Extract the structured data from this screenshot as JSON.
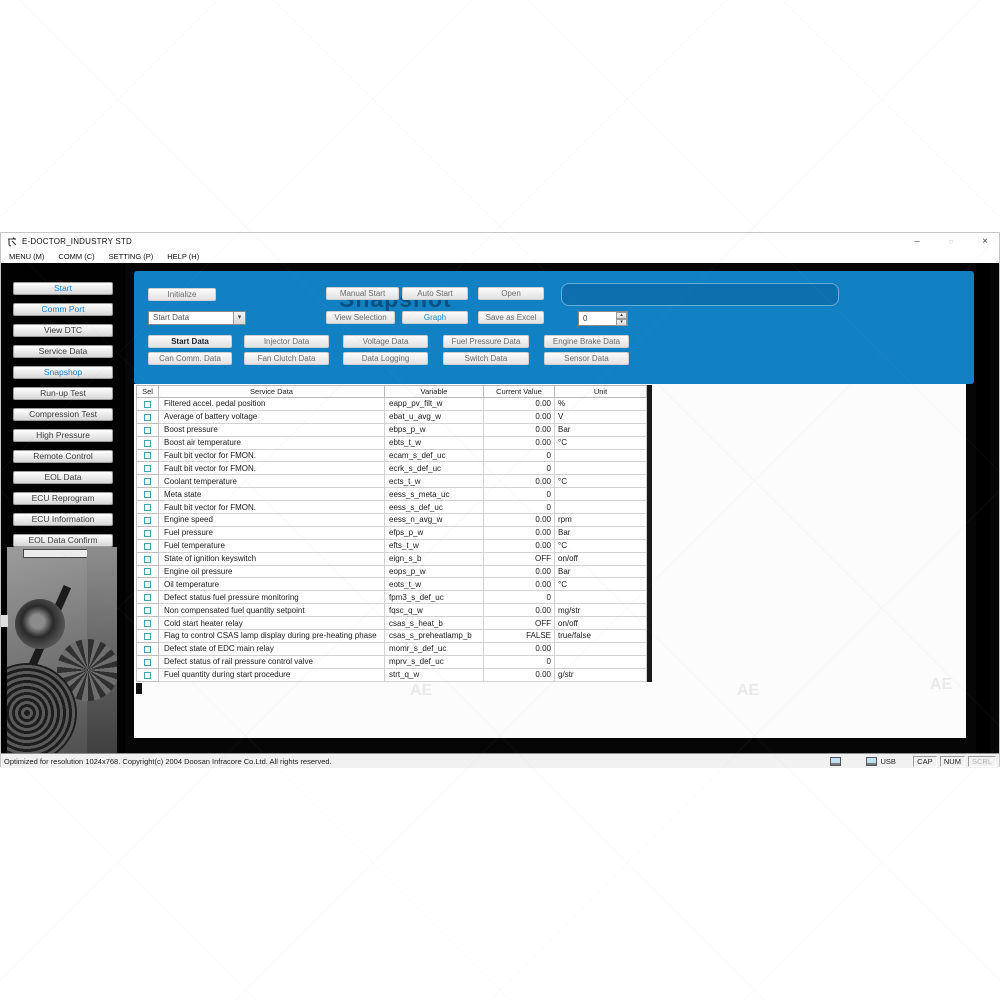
{
  "window": {
    "title": "E-DOCTOR_INDUSTRY STD",
    "minimize": "–",
    "maximize": "○",
    "close": "×"
  },
  "menu": [
    "MENU (M)",
    "COMM (C)",
    "SETTING (P)",
    "HELP (H)"
  ],
  "sidebar": [
    {
      "label": "Start",
      "active": true
    },
    {
      "label": "Comm Port",
      "active": true
    },
    {
      "label": "View DTC",
      "active": false
    },
    {
      "label": "Service Data",
      "active": false
    },
    {
      "label": "Snapshop",
      "active": true
    },
    {
      "label": "Run-up Test",
      "active": false
    },
    {
      "label": "Compression Test",
      "active": false
    },
    {
      "label": "High Pressure",
      "active": false
    },
    {
      "label": "Remote Control",
      "active": false
    },
    {
      "label": "EOL Data",
      "active": false
    },
    {
      "label": "ECU Reprogram",
      "active": false
    },
    {
      "label": "ECU Information",
      "active": false
    },
    {
      "label": "EOL Data Confirm",
      "active": false
    }
  ],
  "panel": {
    "watermark": "Snapshot",
    "initialize": "Initialize",
    "manual_start": "Manual Start",
    "auto_start": "Auto Start",
    "open": "Open",
    "view_selection": "View Selection",
    "graph": "Graph",
    "save_as_excel": "Save as Excel",
    "combo_value": "Start Data",
    "spinner_value": "0",
    "spin_up": "▴",
    "spin_down": "▾",
    "combo_arrow": "▾"
  },
  "categories": {
    "active": "Start Data",
    "row1": [
      "Start Data",
      "Injector Data",
      "Voltage Data",
      "Fuel Pressure Data",
      "Engine Brake Data"
    ],
    "row2": [
      "Can Comm. Data",
      "Fan Clutch Data",
      "Data Logging",
      "Switch Data",
      "Sensor Data"
    ]
  },
  "table": {
    "headers": [
      "Sel",
      "Service Data",
      "Variable",
      "Current Value",
      "Unit"
    ],
    "rows": [
      [
        "Filtered accel. pedal position",
        "eapp_pv_filt_w",
        "0.00",
        "%"
      ],
      [
        "Average of battery voltage",
        "ebat_u_avg_w",
        "0.00",
        "V"
      ],
      [
        "Boost pressure",
        "ebps_p_w",
        "0.00",
        "Bar"
      ],
      [
        "Boost air temperature",
        "ebts_t_w",
        "0.00",
        "°C"
      ],
      [
        "Fault bit vector for FMON.",
        "ecam_s_def_uc",
        "0",
        ""
      ],
      [
        "Fault bit vector for FMON.",
        "ecrk_s_def_uc",
        "0",
        ""
      ],
      [
        "Coolant temperature",
        "ects_t_w",
        "0.00",
        "°C"
      ],
      [
        "Meta state",
        "eess_s_meta_uc",
        "0",
        ""
      ],
      [
        "Fault bit vector for FMON.",
        "eess_s_def_uc",
        "0",
        ""
      ],
      [
        "Engine speed",
        "eess_n_avg_w",
        "0.00",
        "rpm"
      ],
      [
        "Fuel pressure",
        "efps_p_w",
        "0.00",
        "Bar"
      ],
      [
        "Fuel temperature",
        "efts_t_w",
        "0.00",
        "°C"
      ],
      [
        "State of ignition keyswitch",
        "eign_s_b",
        "OFF",
        "on/off"
      ],
      [
        "Engine oil pressure",
        "eops_p_w",
        "0.00",
        "Bar"
      ],
      [
        "Oil temperature",
        "eots_t_w",
        "0.00",
        "°C"
      ],
      [
        "Defect status fuel pressure monitoring",
        "fpm3_s_def_uc",
        "0",
        ""
      ],
      [
        "Non compensated fuel quantity setpoint",
        "fqsc_q_w",
        "0.00",
        "mg/str"
      ],
      [
        "Cold start heater relay",
        "csas_s_heat_b",
        "OFF",
        "on/off"
      ],
      [
        "Flag to control CSAS lamp display during pre-heating phase",
        "csas_s_preheatlamp_b",
        "FALSE",
        "true/false"
      ],
      [
        "Defect state of EDC main relay",
        "momr_s_def_uc",
        "0.00",
        ""
      ],
      [
        "Defect status of rail pressure control valve",
        "mprv_s_def_uc",
        "0",
        ""
      ],
      [
        "Fuel quantity during start procedure",
        "strt_q_w",
        "0.00",
        "g/str"
      ]
    ]
  },
  "statusbar": {
    "text": "Optimized for resolution 1024x768. Copyright(c) 2004 Doosan Infracore Co.Ltd. All rights reserved.",
    "usb": "USB",
    "cap": "CAP",
    "num": "NUM",
    "scrl": "SCRL"
  },
  "page_watermark": "AE",
  "colors": {
    "accent_blue": "#1281c4",
    "panel_watermark_blue": "#07507f",
    "graph_text_blue": "#1585c8",
    "checkbox_border_teal": "#44a0aa"
  }
}
